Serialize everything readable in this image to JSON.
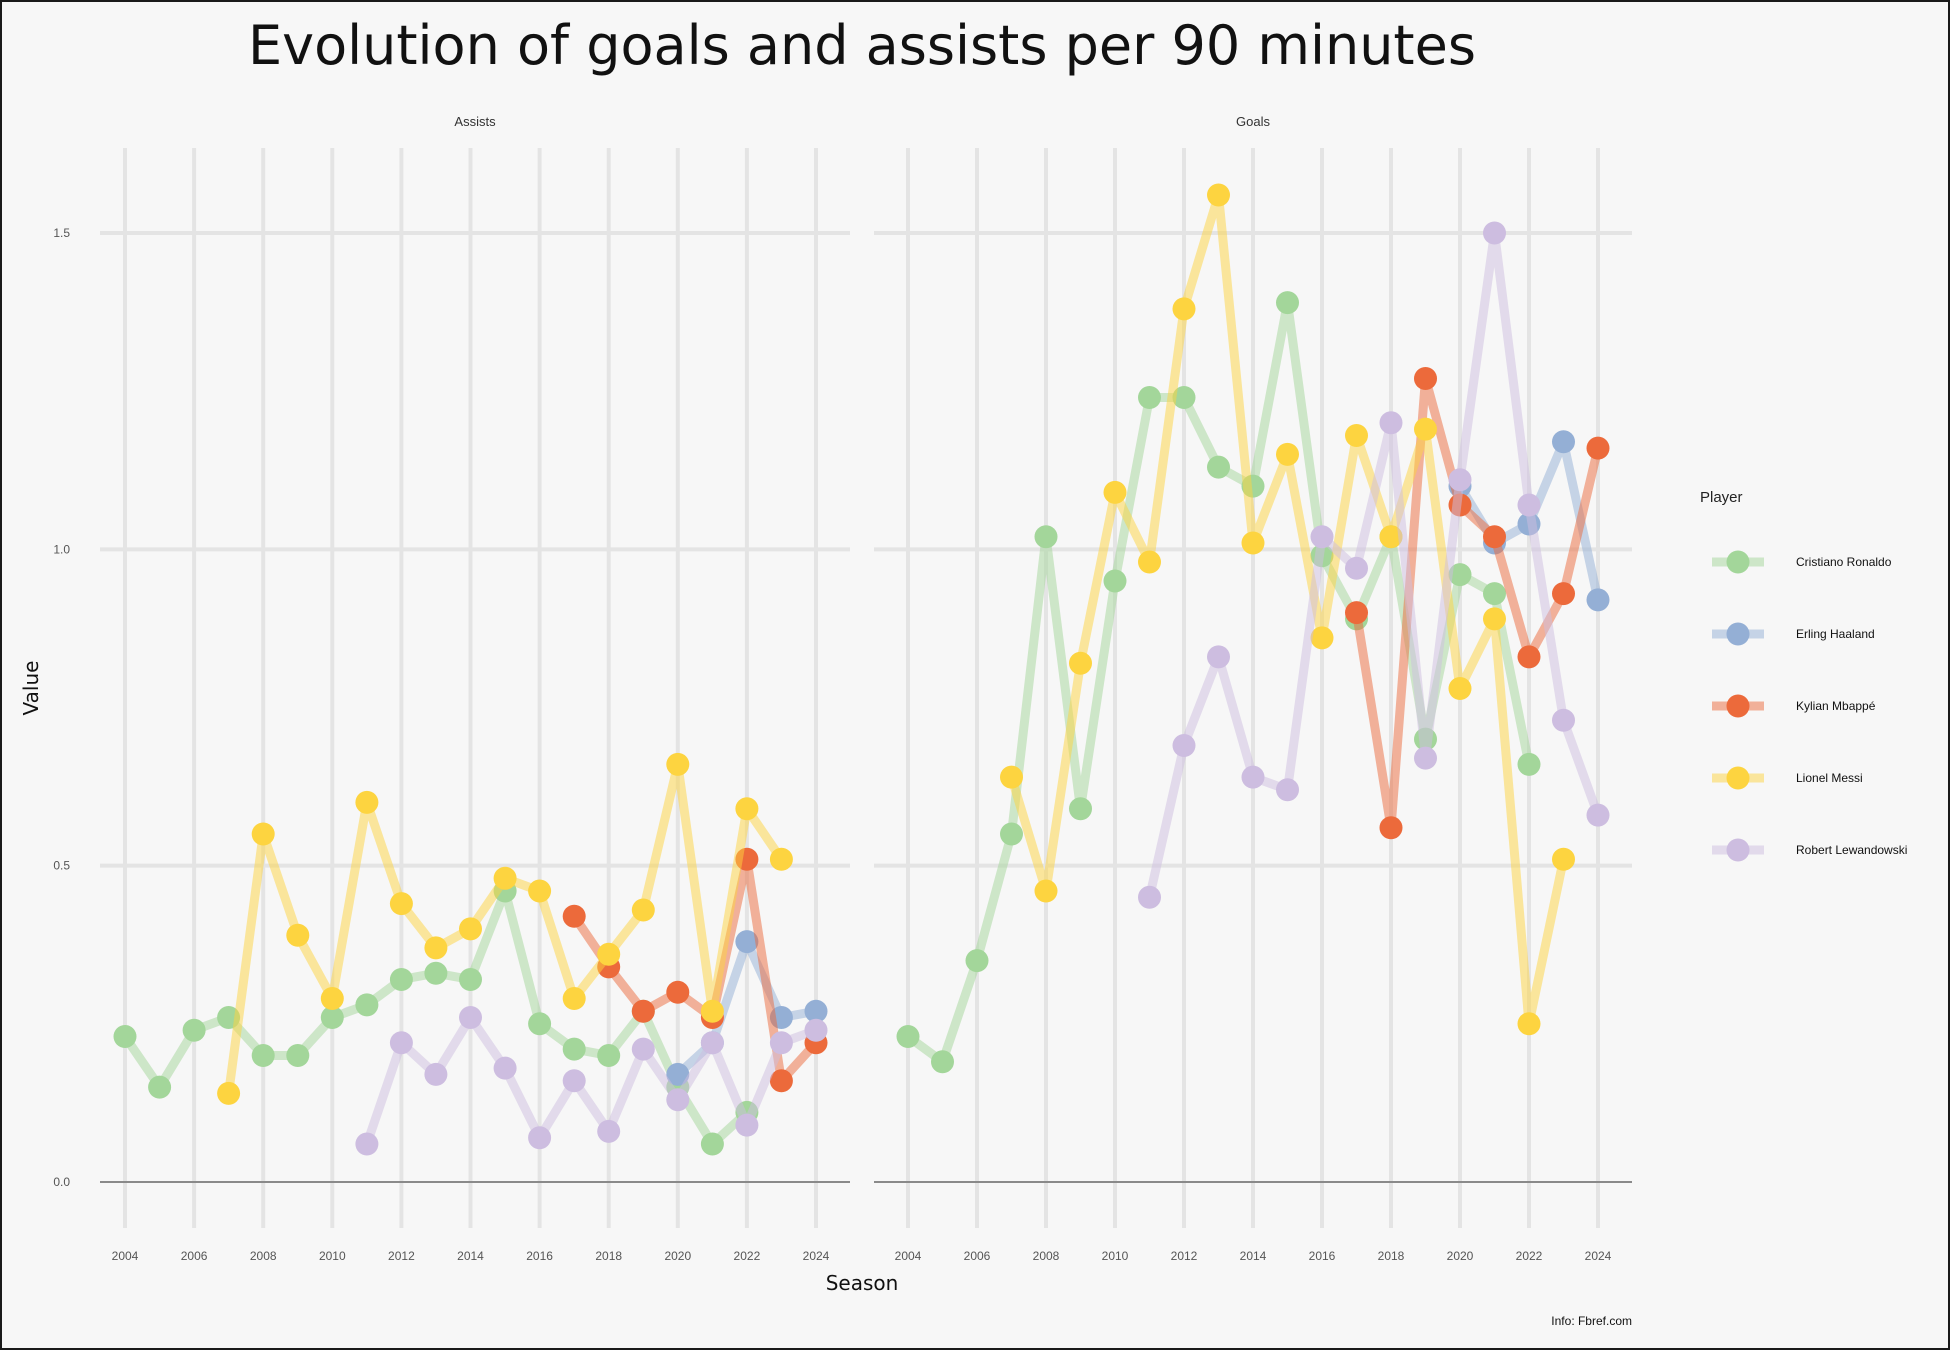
{
  "chart_data": {
    "type": "line",
    "title": "Evolution of goals and assists per 90 minutes",
    "xlabel": "Season",
    "ylabel": "Value",
    "caption": "Info: Fbref.com",
    "facets": [
      "Assists",
      "Goals"
    ],
    "xlim": [
      2004,
      2024
    ],
    "ylim": [
      0,
      1.5
    ],
    "x_ticks": [
      "2004",
      "2006",
      "2008",
      "2010",
      "2012",
      "2014",
      "2016",
      "2018",
      "2020",
      "2022",
      "2024"
    ],
    "y_ticks": [
      "0.0",
      "0.5",
      "1.0",
      "1.5"
    ],
    "grid": true,
    "legend": {
      "title": "Player",
      "position": "right"
    },
    "series": [
      {
        "name": "Cristiano Ronaldo",
        "color": "#a3d69a",
        "assists": [
          [
            2004,
            0.23
          ],
          [
            2005,
            0.15
          ],
          [
            2006,
            0.24
          ],
          [
            2007,
            0.26
          ],
          [
            2008,
            0.2
          ],
          [
            2009,
            0.2
          ],
          [
            2010,
            0.26
          ],
          [
            2011,
            0.28
          ],
          [
            2012,
            0.32
          ],
          [
            2013,
            0.33
          ],
          [
            2014,
            0.32
          ],
          [
            2015,
            0.46
          ],
          [
            2016,
            0.25
          ],
          [
            2017,
            0.21
          ],
          [
            2018,
            0.2
          ],
          [
            2019,
            0.27
          ],
          [
            2020,
            0.15
          ],
          [
            2021,
            0.06
          ],
          [
            2022,
            0.11
          ]
        ],
        "goals": [
          [
            2004,
            0.23
          ],
          [
            2005,
            0.19
          ],
          [
            2006,
            0.35
          ],
          [
            2007,
            0.55
          ],
          [
            2008,
            1.02
          ],
          [
            2009,
            0.59
          ],
          [
            2010,
            0.95
          ],
          [
            2011,
            1.24
          ],
          [
            2012,
            1.24
          ],
          [
            2013,
            1.13
          ],
          [
            2014,
            1.1
          ],
          [
            2015,
            1.39
          ],
          [
            2016,
            0.99
          ],
          [
            2017,
            0.89
          ],
          [
            2018,
            1.02
          ],
          [
            2019,
            0.7
          ],
          [
            2020,
            0.96
          ],
          [
            2021,
            0.93
          ],
          [
            2022,
            0.66
          ]
        ]
      },
      {
        "name": "Erling Haaland",
        "color": "#94afd5",
        "assists": [
          [
            2020,
            0.17
          ],
          [
            2021,
            0.22
          ],
          [
            2022,
            0.38
          ],
          [
            2023,
            0.26
          ],
          [
            2024,
            0.27
          ]
        ],
        "goals": [
          [
            2020,
            1.1
          ],
          [
            2021,
            1.01
          ],
          [
            2022,
            1.04
          ],
          [
            2023,
            1.17
          ],
          [
            2024,
            0.92
          ]
        ]
      },
      {
        "name": "Kylian Mbappé",
        "color": "#ec6a3b",
        "assists": [
          [
            2017,
            0.42
          ],
          [
            2018,
            0.34
          ],
          [
            2019,
            0.27
          ],
          [
            2020,
            0.3
          ],
          [
            2021,
            0.26
          ],
          [
            2022,
            0.51
          ],
          [
            2023,
            0.16
          ],
          [
            2024,
            0.22
          ]
        ],
        "goals": [
          [
            2017,
            0.9
          ],
          [
            2018,
            0.56
          ],
          [
            2019,
            1.27
          ],
          [
            2020,
            1.07
          ],
          [
            2021,
            1.02
          ],
          [
            2022,
            0.83
          ],
          [
            2023,
            0.93
          ],
          [
            2024,
            1.16
          ]
        ]
      },
      {
        "name": "Lionel Messi",
        "color": "#fdd440",
        "assists": [
          [
            2007,
            0.14
          ],
          [
            2008,
            0.55
          ],
          [
            2009,
            0.39
          ],
          [
            2010,
            0.29
          ],
          [
            2011,
            0.6
          ],
          [
            2012,
            0.44
          ],
          [
            2013,
            0.37
          ],
          [
            2014,
            0.4
          ],
          [
            2015,
            0.48
          ],
          [
            2016,
            0.46
          ],
          [
            2017,
            0.29
          ],
          [
            2018,
            0.36
          ],
          [
            2019,
            0.43
          ],
          [
            2020,
            0.66
          ],
          [
            2021,
            0.27
          ],
          [
            2022,
            0.59
          ],
          [
            2023,
            0.51
          ]
        ],
        "goals": [
          [
            2007,
            0.64
          ],
          [
            2008,
            0.46
          ],
          [
            2009,
            0.82
          ],
          [
            2010,
            1.09
          ],
          [
            2011,
            0.98
          ],
          [
            2012,
            1.38
          ],
          [
            2013,
            1.56
          ],
          [
            2014,
            1.01
          ],
          [
            2015,
            1.15
          ],
          [
            2016,
            0.86
          ],
          [
            2017,
            1.18
          ],
          [
            2018,
            1.02
          ],
          [
            2019,
            1.19
          ],
          [
            2020,
            0.78
          ],
          [
            2021,
            0.89
          ],
          [
            2022,
            0.25
          ],
          [
            2023,
            0.51
          ]
        ]
      },
      {
        "name": "Robert Lewandowski",
        "color": "#cdbde0",
        "assists": [
          [
            2011,
            0.06
          ],
          [
            2012,
            0.22
          ],
          [
            2013,
            0.17
          ],
          [
            2014,
            0.26
          ],
          [
            2015,
            0.18
          ],
          [
            2016,
            0.07
          ],
          [
            2017,
            0.16
          ],
          [
            2018,
            0.08
          ],
          [
            2019,
            0.21
          ],
          [
            2020,
            0.13
          ],
          [
            2021,
            0.22
          ],
          [
            2022,
            0.09
          ],
          [
            2023,
            0.22
          ],
          [
            2024,
            0.24
          ]
        ],
        "goals": [
          [
            2011,
            0.45
          ],
          [
            2012,
            0.69
          ],
          [
            2013,
            0.83
          ],
          [
            2014,
            0.64
          ],
          [
            2015,
            0.62
          ],
          [
            2016,
            1.02
          ],
          [
            2017,
            0.97
          ],
          [
            2018,
            1.2
          ],
          [
            2019,
            0.67
          ],
          [
            2020,
            1.11
          ],
          [
            2021,
            1.5
          ],
          [
            2022,
            1.07
          ],
          [
            2023,
            0.73
          ],
          [
            2024,
            0.58
          ]
        ]
      }
    ]
  }
}
